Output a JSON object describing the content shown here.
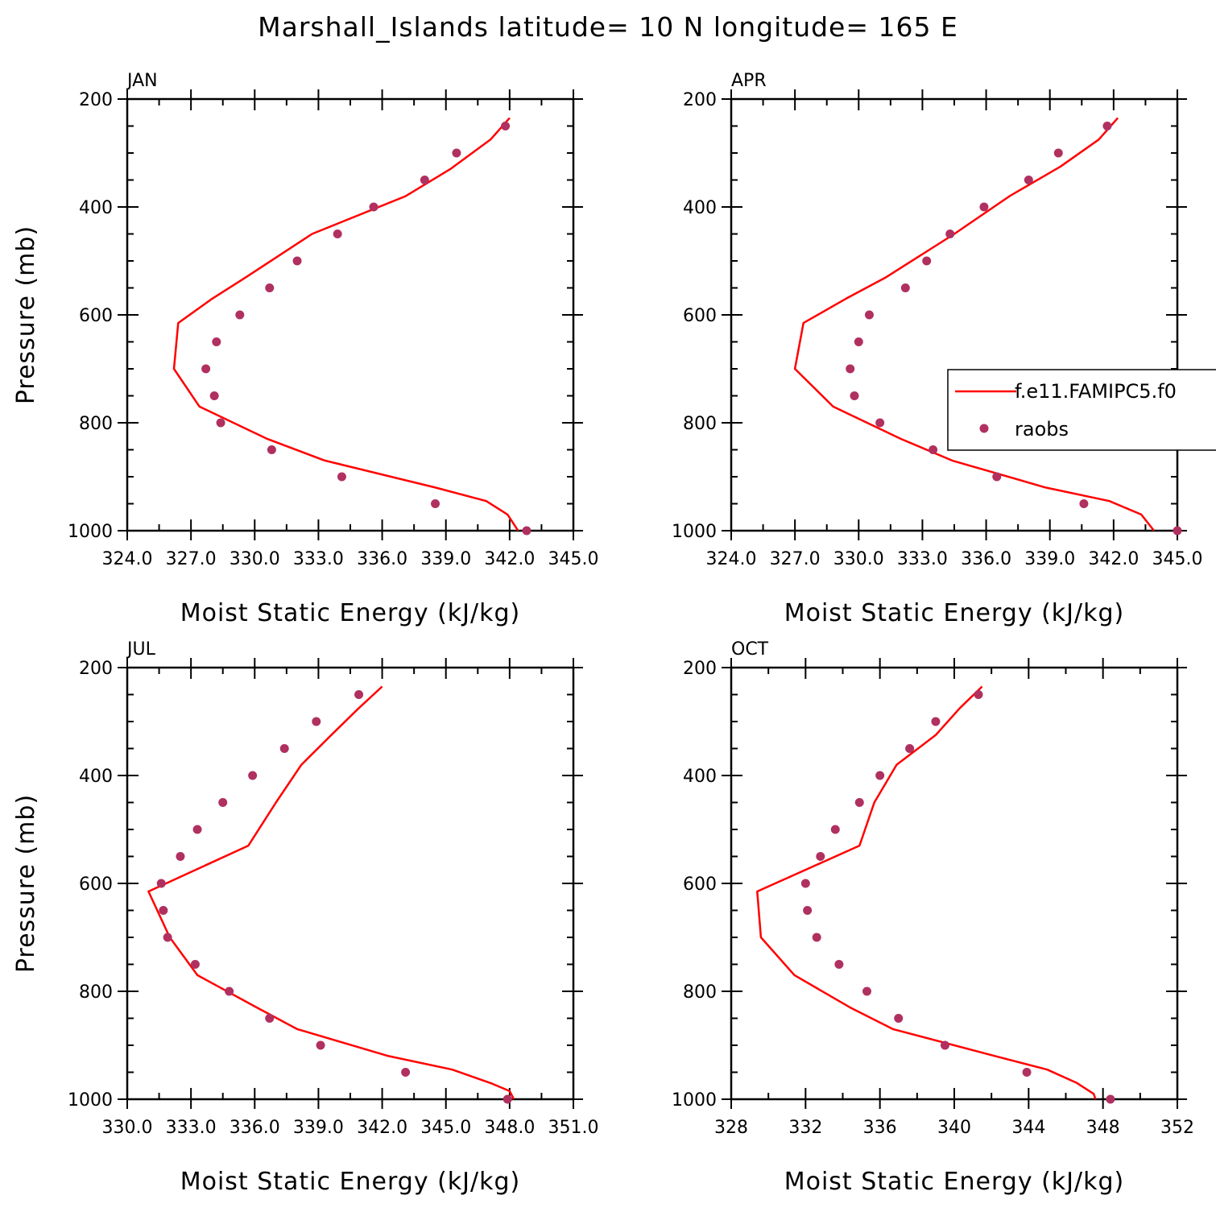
{
  "figure": {
    "title": "Marshall_Islands  latitude= 10 N longitude= 165 E"
  },
  "legend": {
    "model_label": "f.e11.FAMIPC5.f0",
    "obs_label": "raobs"
  },
  "colors": {
    "model": "#ff0000",
    "obs": "#b03060",
    "axes": "#000000"
  },
  "chart_data": [
    {
      "type": "line",
      "panel": "JAN",
      "title": "JAN",
      "xlabel": "Moist Static Energy (kJ/kg)",
      "ylabel": "Pressure (mb)",
      "xlim": [
        324,
        345
      ],
      "ylim": [
        1000,
        200
      ],
      "xticks": [
        324,
        327,
        330,
        333,
        336,
        339,
        342,
        345
      ],
      "xticklabels": [
        "324.0",
        "327.0",
        "330.0",
        "333.0",
        "336.0",
        "339.0",
        "342.0",
        "345.0"
      ],
      "yticks": [
        200,
        400,
        600,
        800,
        1000
      ],
      "yticklabels": [
        "200",
        "400",
        "600",
        "800",
        "1000"
      ],
      "series": [
        {
          "name": "f.e11.FAMIPC5.f0",
          "kind": "line",
          "pressure": [
            235,
            275,
            330,
            380,
            450,
            530,
            570,
            615,
            700,
            770,
            830,
            870,
            920,
            945,
            970,
            1000
          ],
          "values": [
            342.0,
            341.1,
            339.2,
            337.1,
            332.7,
            329.6,
            328.0,
            326.4,
            326.2,
            327.4,
            330.6,
            333.3,
            338.5,
            340.9,
            341.9,
            342.4
          ]
        },
        {
          "name": "raobs",
          "kind": "scatter",
          "pressure": [
            250,
            300,
            350,
            400,
            450,
            500,
            550,
            600,
            650,
            700,
            750,
            800,
            850,
            900,
            950,
            1000
          ],
          "values": [
            341.8,
            339.5,
            338.0,
            335.6,
            333.9,
            332.0,
            330.7,
            329.3,
            328.2,
            327.7,
            328.1,
            328.4,
            330.8,
            334.1,
            338.5,
            342.8
          ]
        }
      ]
    },
    {
      "type": "line",
      "panel": "APR",
      "title": "APR",
      "xlabel": "Moist Static Energy (kJ/kg)",
      "ylabel": "",
      "xlim": [
        324,
        345
      ],
      "ylim": [
        1000,
        200
      ],
      "xticks": [
        324,
        327,
        330,
        333,
        336,
        339,
        342,
        345
      ],
      "xticklabels": [
        "324.0",
        "327.0",
        "330.0",
        "333.0",
        "336.0",
        "339.0",
        "342.0",
        "345.0"
      ],
      "yticks": [
        200,
        400,
        600,
        800,
        1000
      ],
      "yticklabels": [
        "200",
        "400",
        "600",
        "800",
        "1000"
      ],
      "series": [
        {
          "name": "f.e11.FAMIPC5.f0",
          "kind": "line",
          "pressure": [
            235,
            275,
            325,
            380,
            450,
            530,
            570,
            615,
            700,
            770,
            830,
            870,
            920,
            945,
            970,
            1000
          ],
          "values": [
            342.2,
            341.3,
            339.5,
            337.1,
            334.5,
            331.3,
            329.4,
            327.4,
            327.0,
            328.8,
            332.0,
            334.4,
            338.8,
            341.8,
            343.3,
            343.9
          ]
        },
        {
          "name": "raobs",
          "kind": "scatter",
          "pressure": [
            250,
            300,
            350,
            400,
            450,
            500,
            550,
            600,
            650,
            700,
            750,
            800,
            850,
            900,
            950,
            1000
          ],
          "values": [
            341.7,
            339.4,
            338.0,
            335.9,
            334.3,
            333.2,
            332.2,
            330.5,
            330.0,
            329.6,
            329.8,
            331.0,
            333.5,
            336.5,
            340.6,
            345.0
          ]
        }
      ]
    },
    {
      "type": "line",
      "panel": "JUL",
      "title": "JUL",
      "xlabel": "Moist Static Energy (kJ/kg)",
      "ylabel": "Pressure (mb)",
      "xlim": [
        330,
        351
      ],
      "ylim": [
        1000,
        200
      ],
      "xticks": [
        330,
        333,
        336,
        339,
        342,
        345,
        348,
        351
      ],
      "xticklabels": [
        "330.0",
        "333.0",
        "336.0",
        "339.0",
        "342.0",
        "345.0",
        "348.0",
        "351.0"
      ],
      "yticks": [
        200,
        400,
        600,
        800,
        1000
      ],
      "yticklabels": [
        "200",
        "400",
        "600",
        "800",
        "1000"
      ],
      "series": [
        {
          "name": "f.e11.FAMIPC5.f0",
          "kind": "line",
          "pressure": [
            235,
            275,
            325,
            380,
            450,
            530,
            615,
            700,
            770,
            830,
            870,
            920,
            945,
            970,
            985,
            1000
          ],
          "values": [
            342.0,
            340.9,
            339.6,
            338.2,
            337.0,
            335.7,
            331.0,
            332.0,
            333.3,
            336.1,
            338.0,
            342.3,
            345.3,
            347.1,
            348.0,
            348.2
          ]
        },
        {
          "name": "raobs",
          "kind": "scatter",
          "pressure": [
            250,
            300,
            350,
            400,
            450,
            500,
            550,
            600,
            650,
            700,
            750,
            800,
            850,
            900,
            950,
            1000
          ],
          "values": [
            340.9,
            338.9,
            337.4,
            335.9,
            334.5,
            333.3,
            332.5,
            331.6,
            331.7,
            331.9,
            333.2,
            334.8,
            336.7,
            339.1,
            343.1,
            347.9
          ]
        }
      ]
    },
    {
      "type": "line",
      "panel": "OCT",
      "title": "OCT",
      "xlabel": "Moist Static Energy (kJ/kg)",
      "ylabel": "",
      "xlim": [
        328,
        352
      ],
      "ylim": [
        1000,
        200
      ],
      "xticks": [
        328,
        332,
        336,
        340,
        344,
        348,
        352
      ],
      "xticklabels": [
        "328",
        "332",
        "336",
        "340",
        "344",
        "348",
        "352"
      ],
      "yticks": [
        200,
        400,
        600,
        800,
        1000
      ],
      "yticklabels": [
        "200",
        "400",
        "600",
        "800",
        "1000"
      ],
      "series": [
        {
          "name": "f.e11.FAMIPC5.f0",
          "kind": "line",
          "pressure": [
            235,
            275,
            325,
            380,
            450,
            530,
            615,
            700,
            770,
            830,
            870,
            920,
            945,
            970,
            990,
            1000
          ],
          "values": [
            341.5,
            340.3,
            339.0,
            336.9,
            335.7,
            334.9,
            329.4,
            329.6,
            331.4,
            334.4,
            336.7,
            342.2,
            345.0,
            346.6,
            347.5,
            347.6
          ]
        },
        {
          "name": "raobs",
          "kind": "scatter",
          "pressure": [
            250,
            300,
            350,
            400,
            450,
            500,
            550,
            600,
            650,
            700,
            750,
            800,
            850,
            900,
            950,
            1000
          ],
          "values": [
            341.3,
            339.0,
            337.6,
            336.0,
            334.9,
            333.6,
            332.8,
            332.0,
            332.1,
            332.6,
            333.8,
            335.3,
            337.0,
            339.5,
            343.9,
            348.4
          ]
        }
      ]
    }
  ]
}
